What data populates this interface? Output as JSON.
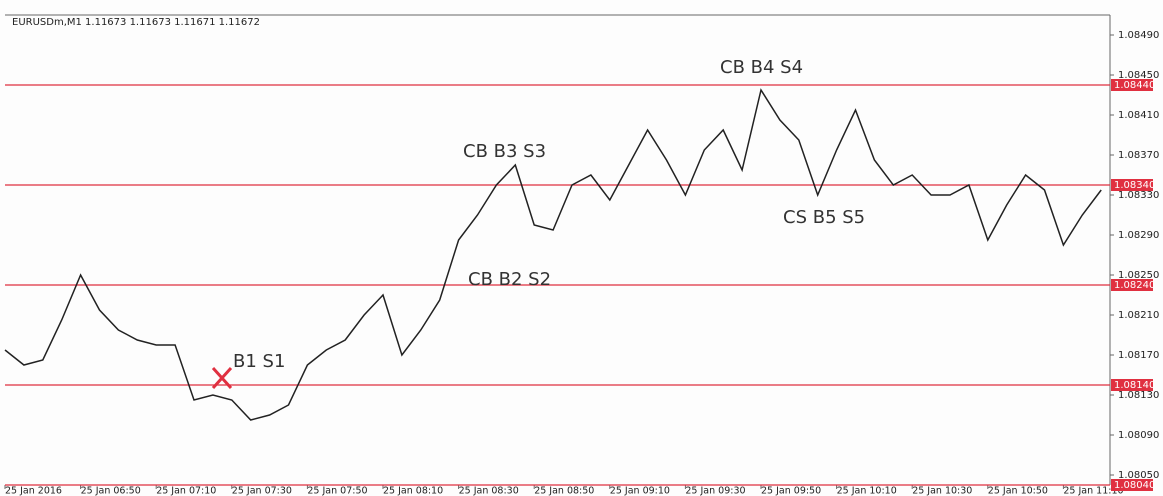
{
  "chart_data": {
    "type": "line",
    "title": "EURUSDm,M1  1.11673 1.11673 1.11671 1.11672",
    "categories": [
      "25 Jan 2016",
      null,
      null,
      null,
      "25 Jan 06:50",
      null,
      null,
      null,
      "25 Jan 07:10",
      null,
      null,
      null,
      "25 Jan 07:30",
      null,
      null,
      null,
      "25 Jan 07:50",
      null,
      null,
      null,
      "25 Jan 08:10",
      null,
      null,
      null,
      "25 Jan 08:30",
      null,
      null,
      null,
      "25 Jan 08:50",
      null,
      null,
      null,
      "25 Jan 09:10",
      null,
      null,
      null,
      "25 Jan 09:30",
      null,
      null,
      null,
      "25 Jan 09:50",
      null,
      null,
      null,
      "25 Jan 10:10",
      null,
      null,
      null,
      "25 Jan 10:30",
      null,
      null,
      null,
      "25 Jan 10:50",
      null,
      null,
      null,
      "25 Jan 11:10",
      null,
      null
    ],
    "values": [
      1.08175,
      1.0816,
      1.08165,
      1.08205,
      1.0825,
      1.08215,
      1.08195,
      1.08185,
      1.0818,
      1.0818,
      1.08125,
      1.0813,
      1.08125,
      1.08105,
      1.0811,
      1.0812,
      1.0816,
      1.08175,
      1.08185,
      1.0821,
      1.0823,
      1.0817,
      1.08195,
      1.08225,
      1.08285,
      1.0831,
      1.0834,
      1.0836,
      1.083,
      1.08295,
      1.0834,
      1.0835,
      1.08325,
      1.0836,
      1.08395,
      1.08365,
      1.0833,
      1.08375,
      1.08395,
      1.08355,
      1.08435,
      1.08405,
      1.08385,
      1.0833,
      1.08375,
      1.08415,
      1.08365,
      1.0834,
      1.0835,
      1.0833,
      1.0833,
      1.0834,
      1.08285,
      1.0832,
      1.0835,
      1.08335,
      1.0828,
      1.0831,
      1.08335
    ],
    "color": "#222222",
    "ylim": [
      1.0804,
      1.0851
    ],
    "yticks": [
      {
        "value": 1.0849,
        "label": "1.08490"
      },
      {
        "value": 1.0845,
        "label": "1.08450"
      },
      {
        "value": 1.0841,
        "label": "1.08410"
      },
      {
        "value": 1.0837,
        "label": "1.08370"
      },
      {
        "value": 1.0833,
        "label": "1.08330"
      },
      {
        "value": 1.0829,
        "label": "1.08290"
      },
      {
        "value": 1.0825,
        "label": "1.08250"
      },
      {
        "value": 1.0821,
        "label": "1.08210"
      },
      {
        "value": 1.0817,
        "label": "1.08170"
      },
      {
        "value": 1.0813,
        "label": "1.08130"
      },
      {
        "value": 1.0809,
        "label": "1.08090"
      },
      {
        "value": 1.0805,
        "label": "1.08050"
      }
    ],
    "levels": [
      {
        "value": 1.0844,
        "label": "1.08440"
      },
      {
        "value": 1.0834,
        "label": "1.08340"
      },
      {
        "value": 1.0824,
        "label": "1.08240"
      },
      {
        "value": 1.0814,
        "label": "1.08140"
      },
      {
        "value": 1.0804,
        "label": "1.08040"
      }
    ],
    "level_color": "#e03040",
    "annotations": [
      "CB B4 S4",
      "CB B3 S3",
      "CS B5 S5",
      "CB B2 S2",
      "B1 S1"
    ]
  }
}
